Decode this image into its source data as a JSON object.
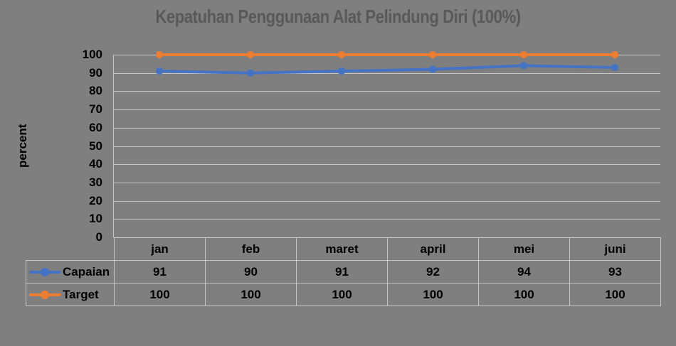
{
  "chart_data": {
    "type": "line",
    "title": "Kepatuhan Penggunaan Alat Pelindung Diri (100%)",
    "ylabel": "percent",
    "xlabel": "",
    "categories": [
      "jan",
      "feb",
      "maret",
      "april",
      "mei",
      "juni"
    ],
    "series": [
      {
        "name": "Capaian",
        "values": [
          91,
          90,
          91,
          92,
          94,
          93
        ],
        "color": "#4472C4"
      },
      {
        "name": "Target",
        "values": [
          100,
          100,
          100,
          100,
          100,
          100
        ],
        "color": "#ED7D31"
      }
    ],
    "ylim": [
      0,
      100
    ],
    "yticks": [
      0,
      10,
      20,
      30,
      40,
      50,
      60,
      70,
      80,
      90,
      100
    ],
    "grid": true,
    "legend_position": "table-left",
    "colors": {
      "background": "#7f7f7f",
      "gridline": "#c6c6c6",
      "axis_line": "#c6c6c6",
      "title_text": "#595959",
      "body_text": "#000000"
    }
  }
}
